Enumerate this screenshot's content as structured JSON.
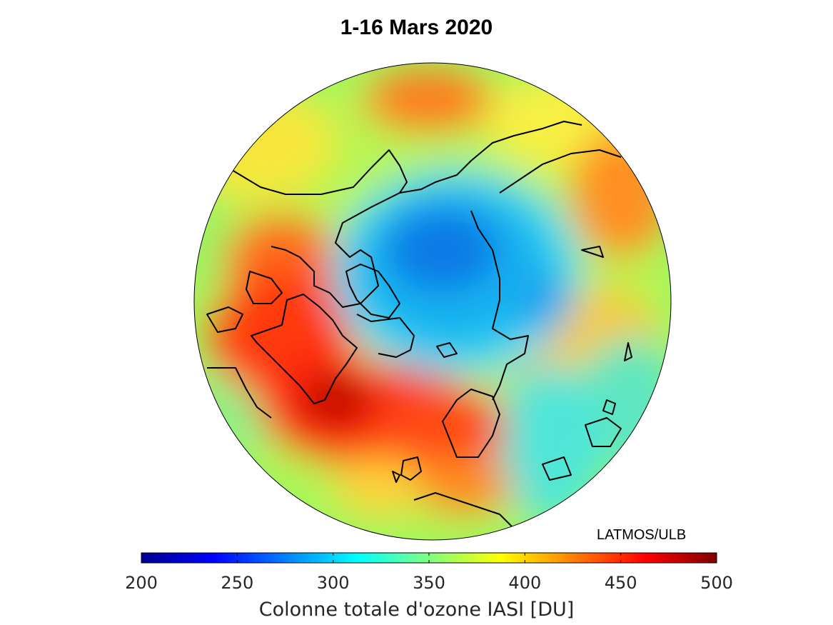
{
  "title": "1-16 Mars 2020",
  "credit": "LATMOS/ULB",
  "colorbar": {
    "label": "Colonne totale d'ozone IASI [DU]",
    "min": 200,
    "max": 500,
    "ticks": [
      "200",
      "250",
      "300",
      "350",
      "400",
      "450",
      "500"
    ],
    "colormap": "jet",
    "stops": [
      "#00008f",
      "#0000ff",
      "#0080ff",
      "#00ffff",
      "#80ff80",
      "#ffff00",
      "#ff8000",
      "#ff0000",
      "#800000"
    ]
  },
  "map": {
    "projection": "north-polar-stereographic",
    "features": [
      {
        "name": "polar-vortex-low-ozone",
        "value": 280
      },
      {
        "name": "north-atlantic-high-ozone",
        "value": 460
      },
      {
        "name": "north-pacific-high-ozone",
        "value": 420
      },
      {
        "name": "europe-high-ozone",
        "value": 430
      },
      {
        "name": "east-siberia-high-ozone",
        "value": 420
      }
    ]
  }
}
